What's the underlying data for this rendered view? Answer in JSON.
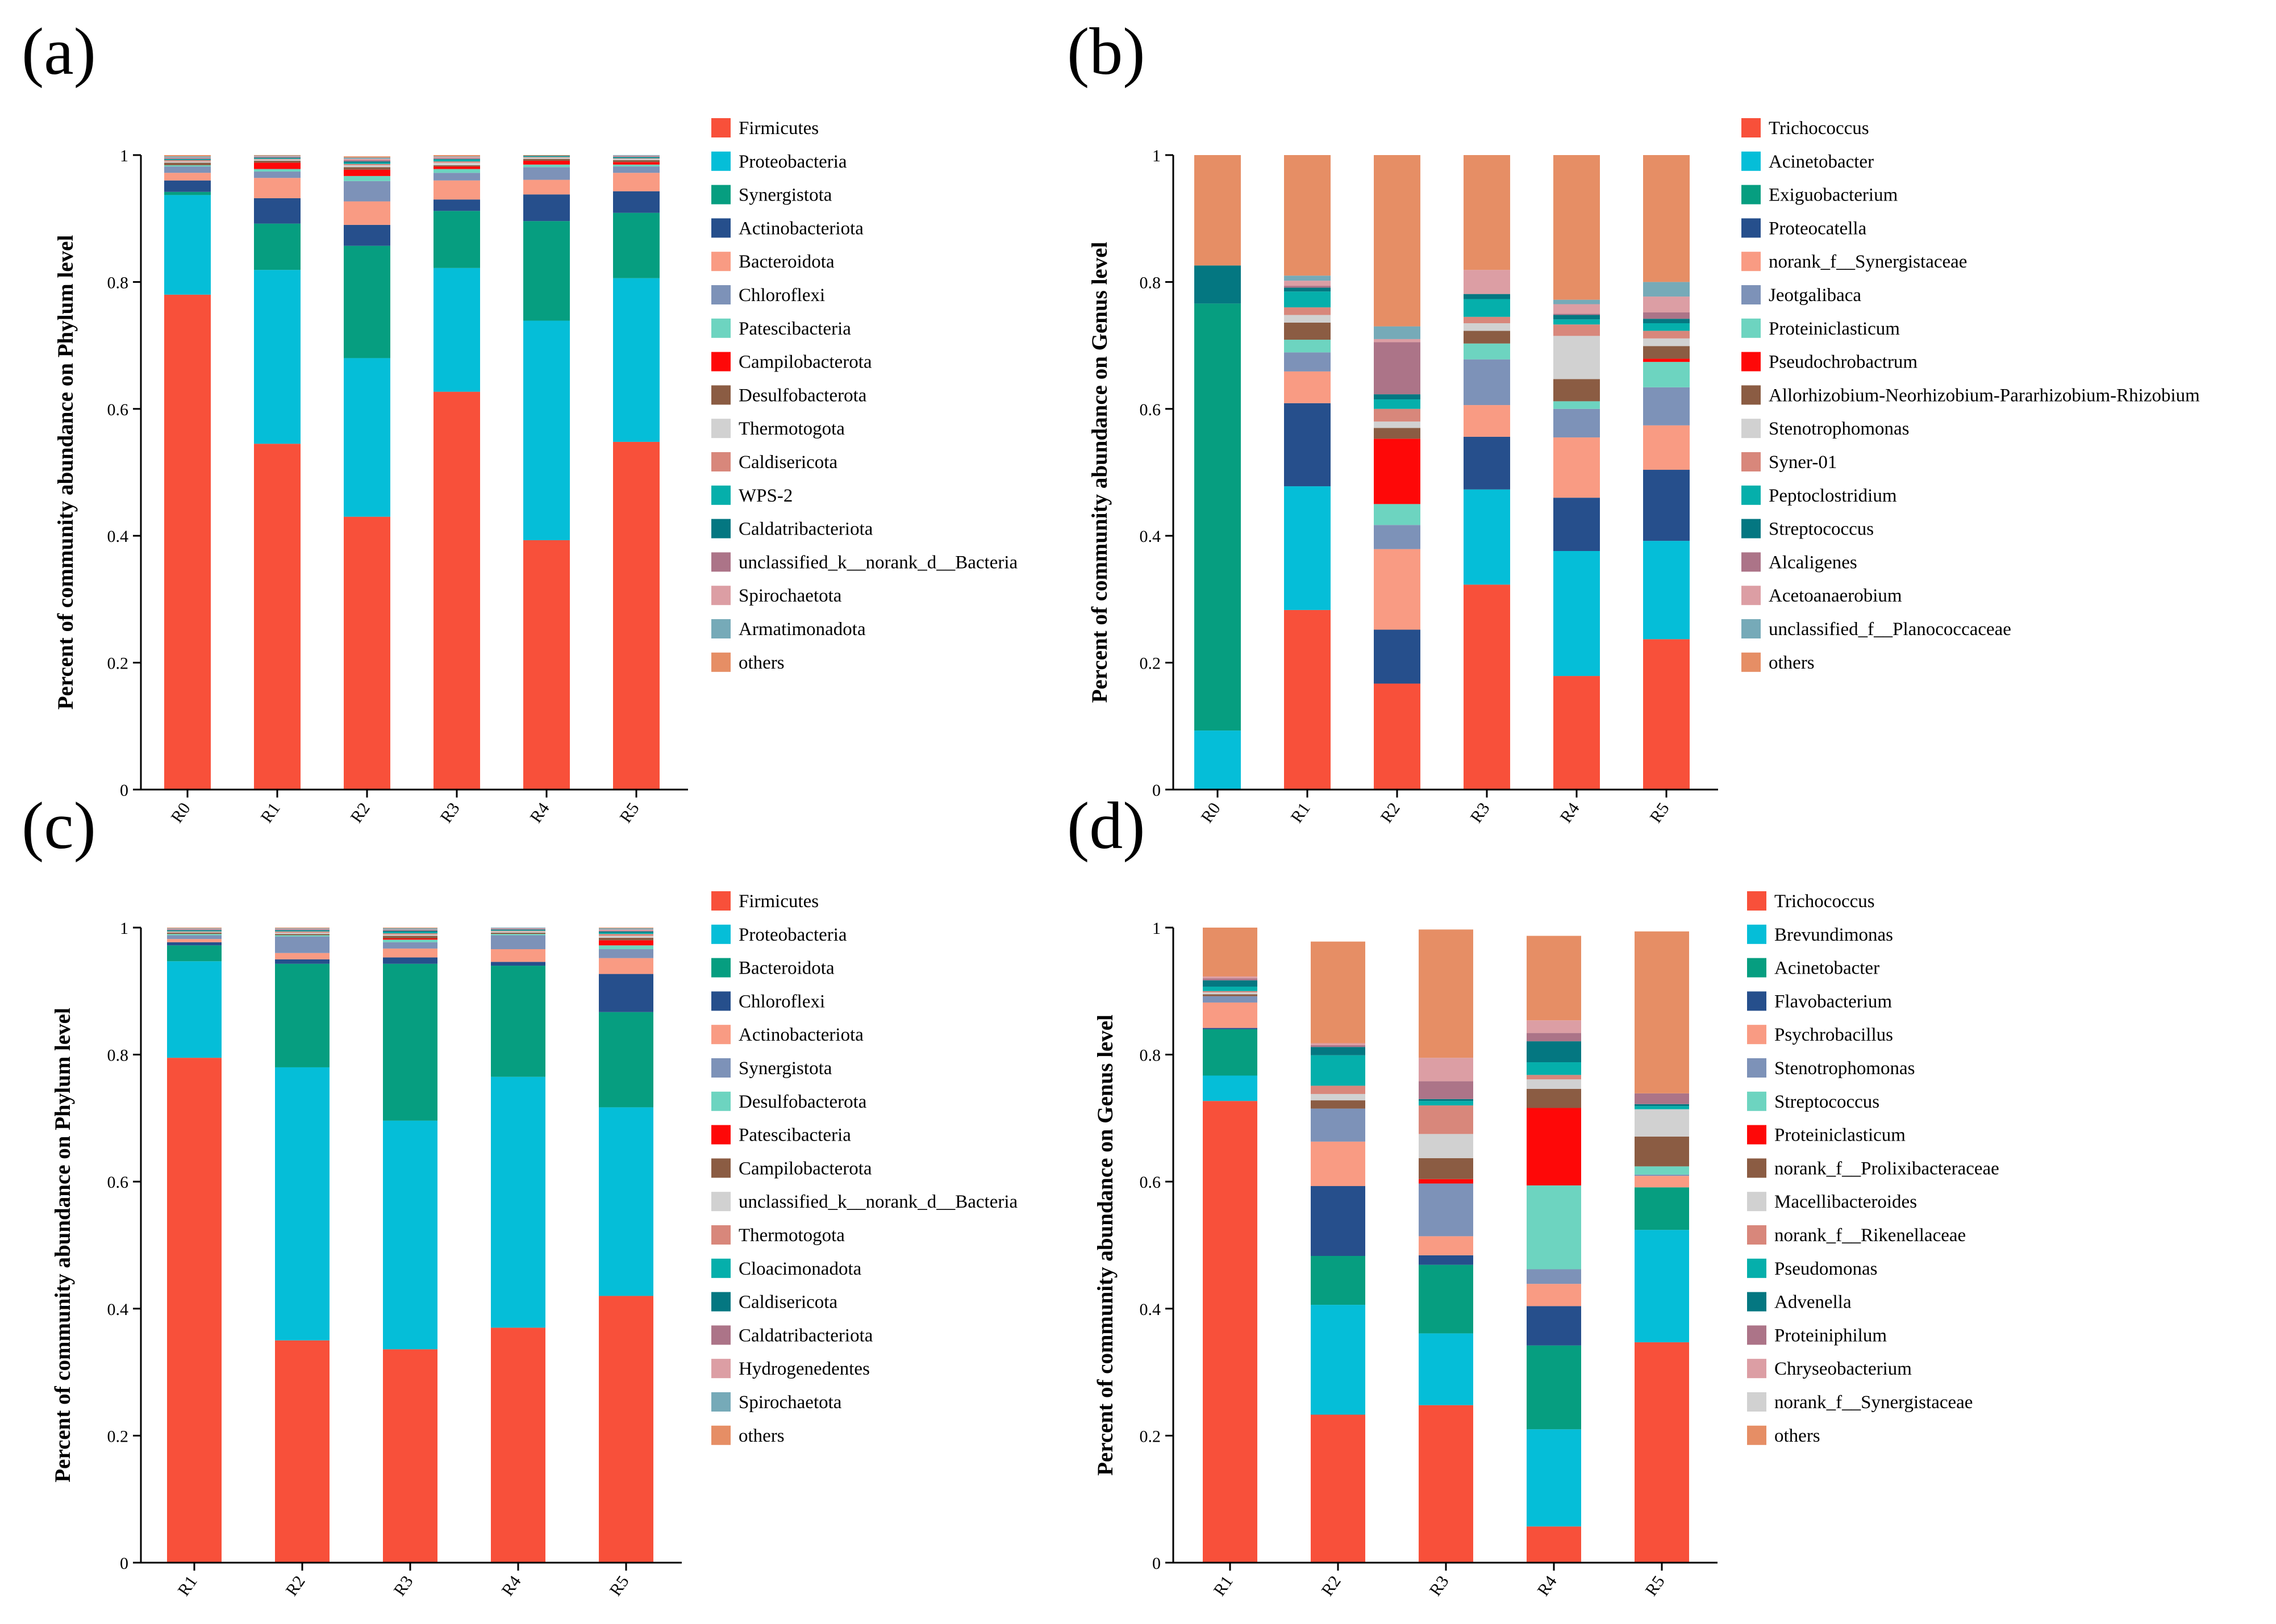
{
  "colors": {
    "red": "#f8503a",
    "cyan": "#05bed8",
    "green": "#069e80",
    "navy": "#264f8c",
    "salmon": "#f99b83",
    "steel": "#7d92b8",
    "mint": "#6dd4c0",
    "brightred": "#fe0808",
    "brown": "#8b5c43",
    "lightgray": "#d1d1d1",
    "rose": "#d8877b",
    "teal": "#05afab",
    "darkteal": "#047781",
    "mauve": "#ac7488",
    "pink": "#dc9ea4",
    "slate": "#76aab8",
    "orange": "#e68e65"
  },
  "chart_data": [
    {
      "panel_label": "(a)",
      "type": "bar",
      "stacked": true,
      "ylabel": "Percent of community abundance on Phylum level",
      "ylim": [
        0,
        1
      ],
      "y_ticks": [
        "0",
        "0.2",
        "0.4",
        "0.6",
        "0.8",
        "1"
      ],
      "categories": [
        "R0",
        "R1",
        "R2",
        "R3",
        "R4",
        "R5"
      ],
      "series": [
        {
          "name": "Firmicutes",
          "color": "#f8503a",
          "values": [
            0.78,
            0.545,
            0.43,
            0.627,
            0.393,
            0.548
          ]
        },
        {
          "name": "Proteobacteria",
          "color": "#05bed8",
          "values": [
            0.157,
            0.274,
            0.25,
            0.195,
            0.346,
            0.258
          ]
        },
        {
          "name": "Synergistota",
          "color": "#069e80",
          "values": [
            0.005,
            0.073,
            0.177,
            0.09,
            0.157,
            0.103
          ]
        },
        {
          "name": "Actinobacteriota",
          "color": "#264f8c",
          "values": [
            0.018,
            0.04,
            0.033,
            0.018,
            0.042,
            0.034
          ]
        },
        {
          "name": "Bacteroidota",
          "color": "#f99b83",
          "values": [
            0.012,
            0.032,
            0.037,
            0.03,
            0.023,
            0.029
          ]
        },
        {
          "name": "Chloroflexi",
          "color": "#7d92b8",
          "values": [
            0.01,
            0.01,
            0.032,
            0.012,
            0.02,
            0.01
          ]
        },
        {
          "name": "Patescibacteria",
          "color": "#6dd4c0",
          "values": [
            0.002,
            0.004,
            0.008,
            0.006,
            0.004,
            0.003
          ]
        },
        {
          "name": "Campilobacterota",
          "color": "#fe0808",
          "values": [
            0.0,
            0.01,
            0.01,
            0.004,
            0.006,
            0.004
          ]
        },
        {
          "name": "Desulfobacterota",
          "color": "#8b5c43",
          "values": [
            0.004,
            0.003,
            0.004,
            0.002,
            0.003,
            0.003
          ]
        },
        {
          "name": "Thermotogota",
          "color": "#d1d1d1",
          "values": [
            0.002,
            0.002,
            0.003,
            0.004,
            0.002,
            0.002
          ]
        },
        {
          "name": "Caldisericota",
          "color": "#d8877b",
          "values": [
            0.002,
            0.001,
            0.002,
            0.002,
            0.001,
            0.001
          ]
        },
        {
          "name": "WPS-2",
          "color": "#05afab",
          "values": [
            0.001,
            0.001,
            0.002,
            0.003,
            0.001,
            0.001
          ]
        },
        {
          "name": "Caldatribacteriota",
          "color": "#047781",
          "values": [
            0.001,
            0.001,
            0.002,
            0.001,
            0.001,
            0.001
          ]
        },
        {
          "name": "unclassified_k__norank_d__Bacteria",
          "color": "#ac7488",
          "values": [
            0.001,
            0.001,
            0.002,
            0.001,
            0.0,
            0.001
          ]
        },
        {
          "name": "Spirochaetota",
          "color": "#dc9ea4",
          "values": [
            0.001,
            0.001,
            0.002,
            0.002,
            0.0,
            0.001
          ]
        },
        {
          "name": "Armatimonadota",
          "color": "#76aab8",
          "values": [
            0.002,
            0.001,
            0.002,
            0.001,
            0.0,
            0.001
          ]
        },
        {
          "name": "others",
          "color": "#e68e65",
          "values": [
            0.002,
            0.001,
            0.002,
            0.002,
            0.001,
            0.0
          ]
        }
      ]
    },
    {
      "panel_label": "(b)",
      "type": "bar",
      "stacked": true,
      "ylabel": "Percent of community abundance on Genus level",
      "ylim": [
        0,
        1
      ],
      "y_ticks": [
        "0",
        "0.2",
        "0.4",
        "0.6",
        "0.8",
        "1"
      ],
      "categories": [
        "R0",
        "R1",
        "R2",
        "R3",
        "R4",
        "R5"
      ],
      "series": [
        {
          "name": "Trichococcus",
          "color": "#f8503a",
          "values": [
            0.0,
            0.283,
            0.167,
            0.323,
            0.179,
            0.237
          ]
        },
        {
          "name": "Acinetobacter",
          "color": "#05bed8",
          "values": [
            0.093,
            0.195,
            0.0,
            0.15,
            0.197,
            0.155
          ]
        },
        {
          "name": "Exiguobacterium",
          "color": "#069e80",
          "values": [
            0.673,
            0.0,
            0.0,
            0.0,
            0.0,
            0.0
          ]
        },
        {
          "name": "Proteocatella",
          "color": "#264f8c",
          "values": [
            0.0,
            0.131,
            0.085,
            0.083,
            0.084,
            0.112
          ]
        },
        {
          "name": "norank_f__Synergistaceae",
          "color": "#f99b83",
          "values": [
            0.0,
            0.05,
            0.127,
            0.05,
            0.095,
            0.07
          ]
        },
        {
          "name": "Jeotgalibaca",
          "color": "#7d92b8",
          "values": [
            0.0,
            0.03,
            0.038,
            0.072,
            0.045,
            0.06
          ]
        },
        {
          "name": "Proteiniclasticum",
          "color": "#6dd4c0",
          "values": [
            0.0,
            0.02,
            0.033,
            0.025,
            0.012,
            0.04
          ]
        },
        {
          "name": "Pseudochrobactrum",
          "color": "#fe0808",
          "values": [
            0.0,
            0.0,
            0.103,
            0.0,
            0.0,
            0.005
          ]
        },
        {
          "name": "Allorhizobium-Neorhizobium-Pararhizobium-Rhizobium",
          "color": "#8b5c43",
          "values": [
            0.0,
            0.027,
            0.017,
            0.02,
            0.035,
            0.02
          ]
        },
        {
          "name": "Stenotrophomonas",
          "color": "#d1d1d1",
          "values": [
            0.0,
            0.012,
            0.01,
            0.012,
            0.068,
            0.012
          ]
        },
        {
          "name": "Syner-01",
          "color": "#d8877b",
          "values": [
            0.0,
            0.012,
            0.02,
            0.01,
            0.018,
            0.012
          ]
        },
        {
          "name": "Peptoclostridium",
          "color": "#05afab",
          "values": [
            0.0,
            0.025,
            0.015,
            0.028,
            0.008,
            0.012
          ]
        },
        {
          "name": "Streptococcus",
          "color": "#047781",
          "values": [
            0.06,
            0.006,
            0.008,
            0.008,
            0.007,
            0.007
          ]
        },
        {
          "name": "Alcaligenes",
          "color": "#ac7488",
          "values": [
            0.0,
            0.003,
            0.082,
            0.0,
            0.002,
            0.01
          ]
        },
        {
          "name": "Acetoanaerobium",
          "color": "#dc9ea4",
          "values": [
            0.0,
            0.008,
            0.005,
            0.038,
            0.015,
            0.025
          ]
        },
        {
          "name": "unclassified_f__Planococcaceae",
          "color": "#76aab8",
          "values": [
            0.0,
            0.008,
            0.02,
            0.0,
            0.007,
            0.023
          ]
        },
        {
          "name": "others",
          "color": "#e68e65",
          "values": [
            0.174,
            0.19,
            0.27,
            0.181,
            0.228,
            0.2
          ]
        }
      ]
    },
    {
      "panel_label": "(c)",
      "type": "bar",
      "stacked": true,
      "ylabel": "Percent of community abundance on Phylum level",
      "ylim": [
        0,
        1
      ],
      "y_ticks": [
        "0",
        "0.2",
        "0.4",
        "0.6",
        "0.8",
        "1"
      ],
      "categories": [
        "R1",
        "R2",
        "R3",
        "R4",
        "R5"
      ],
      "series": [
        {
          "name": "Firmicutes",
          "color": "#f8503a",
          "values": [
            0.795,
            0.35,
            0.336,
            0.37,
            0.42
          ]
        },
        {
          "name": "Proteobacteria",
          "color": "#05bed8",
          "values": [
            0.152,
            0.43,
            0.36,
            0.395,
            0.297
          ]
        },
        {
          "name": "Bacteroidota",
          "color": "#069e80",
          "values": [
            0.025,
            0.163,
            0.247,
            0.175,
            0.15
          ]
        },
        {
          "name": "Chloroflexi",
          "color": "#264f8c",
          "values": [
            0.005,
            0.007,
            0.01,
            0.006,
            0.06
          ]
        },
        {
          "name": "Actinobacteriota",
          "color": "#f99b83",
          "values": [
            0.005,
            0.01,
            0.014,
            0.02,
            0.025
          ]
        },
        {
          "name": "Synergistota",
          "color": "#7d92b8",
          "values": [
            0.006,
            0.026,
            0.01,
            0.022,
            0.014
          ]
        },
        {
          "name": "Desulfobacterota",
          "color": "#6dd4c0",
          "values": [
            0.002,
            0.002,
            0.004,
            0.002,
            0.006
          ]
        },
        {
          "name": "Patescibacteria",
          "color": "#fe0808",
          "values": [
            0.0,
            0.0,
            0.002,
            0.0,
            0.008
          ]
        },
        {
          "name": "Campilobacterota",
          "color": "#8b5c43",
          "values": [
            0.002,
            0.002,
            0.004,
            0.002,
            0.004
          ]
        },
        {
          "name": "unclassified_k__norank_d__Bacteria",
          "color": "#d1d1d1",
          "values": [
            0.001,
            0.002,
            0.002,
            0.002,
            0.003
          ]
        },
        {
          "name": "Thermotogota",
          "color": "#d8877b",
          "values": [
            0.001,
            0.002,
            0.002,
            0.001,
            0.003
          ]
        },
        {
          "name": "Cloacimonadota",
          "color": "#05afab",
          "values": [
            0.001,
            0.001,
            0.002,
            0.001,
            0.002
          ]
        },
        {
          "name": "Caldisericota",
          "color": "#047781",
          "values": [
            0.001,
            0.001,
            0.002,
            0.001,
            0.002
          ]
        },
        {
          "name": "Caldatribacteriota",
          "color": "#ac7488",
          "values": [
            0.001,
            0.001,
            0.001,
            0.001,
            0.001
          ]
        },
        {
          "name": "Hydrogenedentes",
          "color": "#dc9ea4",
          "values": [
            0.001,
            0.001,
            0.001,
            0.001,
            0.002
          ]
        },
        {
          "name": "Spirochaetota",
          "color": "#76aab8",
          "values": [
            0.001,
            0.001,
            0.002,
            0.001,
            0.002
          ]
        },
        {
          "name": "others",
          "color": "#e68e65",
          "values": [
            0.001,
            0.001,
            0.001,
            0.0,
            0.001
          ]
        }
      ]
    },
    {
      "panel_label": "(d)",
      "type": "bar",
      "stacked": true,
      "ylabel": "Percent of community abundance on Genus level",
      "ylim": [
        0,
        1
      ],
      "y_ticks": [
        "0",
        "0.2",
        "0.4",
        "0.6",
        "0.8",
        "1"
      ],
      "categories": [
        "R1",
        "R2",
        "R3",
        "R4",
        "R5"
      ],
      "series": [
        {
          "name": "Trichococcus",
          "color": "#f8503a",
          "values": [
            0.727,
            0.233,
            0.248,
            0.057,
            0.347
          ]
        },
        {
          "name": "Brevundimonas",
          "color": "#05bed8",
          "values": [
            0.04,
            0.173,
            0.113,
            0.153,
            0.177
          ]
        },
        {
          "name": "Acinetobacter",
          "color": "#069e80",
          "values": [
            0.073,
            0.077,
            0.108,
            0.132,
            0.067
          ]
        },
        {
          "name": "Flavobacterium",
          "color": "#264f8c",
          "values": [
            0.002,
            0.11,
            0.015,
            0.062,
            0.0
          ]
        },
        {
          "name": "Psychrobacillus",
          "color": "#f99b83",
          "values": [
            0.04,
            0.07,
            0.03,
            0.035,
            0.018
          ]
        },
        {
          "name": "Stenotrophomonas",
          "color": "#7d92b8",
          "values": [
            0.01,
            0.052,
            0.083,
            0.023,
            0.002
          ]
        },
        {
          "name": "Streptococcus",
          "color": "#6dd4c0",
          "values": [
            0.0,
            0.0,
            0.0,
            0.132,
            0.013
          ]
        },
        {
          "name": "Proteiniclasticum",
          "color": "#fe0808",
          "values": [
            0.0,
            0.0,
            0.007,
            0.122,
            0.0
          ]
        },
        {
          "name": "norank_f__Prolixibacteraceae",
          "color": "#8b5c43",
          "values": [
            0.003,
            0.013,
            0.033,
            0.03,
            0.047
          ]
        },
        {
          "name": "Macellibacteroides",
          "color": "#d1d1d1",
          "values": [
            0.003,
            0.01,
            0.038,
            0.015,
            0.043
          ]
        },
        {
          "name": "norank_f__Rikenellaceae",
          "color": "#d8877b",
          "values": [
            0.002,
            0.013,
            0.045,
            0.007,
            0.0
          ]
        },
        {
          "name": "Pseudomonas",
          "color": "#05afab",
          "values": [
            0.007,
            0.048,
            0.007,
            0.02,
            0.005
          ]
        },
        {
          "name": "Advenella",
          "color": "#047781",
          "values": [
            0.01,
            0.013,
            0.003,
            0.033,
            0.003
          ]
        },
        {
          "name": "Proteiniphilum",
          "color": "#ac7488",
          "values": [
            0.003,
            0.003,
            0.028,
            0.013,
            0.017
          ]
        },
        {
          "name": "Chryseobacterium",
          "color": "#dc9ea4",
          "values": [
            0.003,
            0.003,
            0.037,
            0.02,
            0.0
          ]
        },
        {
          "name": "norank_f__Synergistaceae",
          "color": "#d1d1d1",
          "values": [
            0.0,
            0.0,
            0.0,
            0.0,
            0.0
          ]
        },
        {
          "name": "others",
          "color": "#e68e65",
          "values": [
            0.077,
            0.16,
            0.202,
            0.133,
            0.255
          ]
        }
      ]
    }
  ]
}
